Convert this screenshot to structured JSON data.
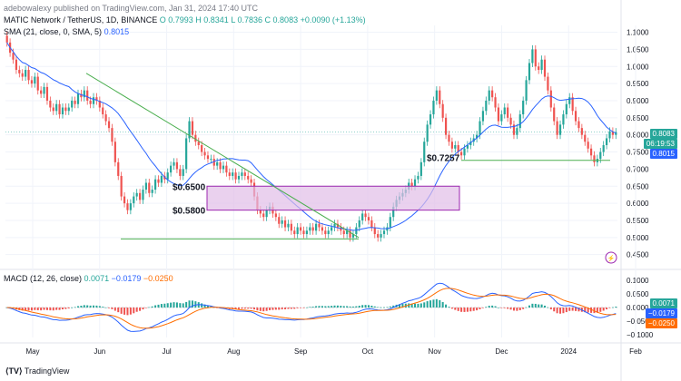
{
  "publisher_line": "adebowalexy published on TradingView.com, Jan 31, 2024 17:40 UTC",
  "symbol_line": {
    "title": "MATIC Network / TetherUS, 1D, BINANCE",
    "o": "O 0.7993",
    "h": "H 0.8341",
    "l": "L 0.7836",
    "c": "C 0.8083",
    "chg": "+0.0090 (+1.13%)"
  },
  "sma_line": {
    "label": "SMA (21, close, 0, SMA, 5)",
    "value": "0.8015"
  },
  "macd_line": {
    "label": "MACD (12, 26, close)",
    "v1": "0.0071",
    "v2": "−0.0179",
    "v3": "−0.0250"
  },
  "price_tags": {
    "last": "0.8083",
    "countdown": "06:19:53",
    "sma": "0.8015"
  },
  "macd_tags": {
    "hist": "0.0071",
    "macd": "−0.0179",
    "signal": "−0.0250"
  },
  "annotations": {
    "a1": "$0.6500",
    "a2": "$0.5800",
    "a3": "$0.7257"
  },
  "watermark": "TradingView",
  "colors": {
    "up": "#26a69a",
    "down": "#ef5350",
    "sma": "#2962ff",
    "signal": "#ff6d00",
    "trend": "#4caf50",
    "box_fill": "#e1bee7",
    "box_stroke": "#9c27b0"
  },
  "price_axis": [
    "1.1000",
    "1.0500",
    "1.0000",
    "0.9500",
    "0.9000",
    "0.8500",
    "0.8000",
    "0.7500",
    "0.7000",
    "0.6500",
    "0.6000",
    "0.5500",
    "0.5000",
    "0.4500"
  ],
  "macd_axis": [
    "0.1000",
    "0.0500",
    "0.0000",
    "−0.0500",
    "−0.1000"
  ],
  "time_axis": [
    "May",
    "Jun",
    "Jul",
    "Aug",
    "Sep",
    "Oct",
    "Nov",
    "Dec",
    "2024",
    "Feb"
  ],
  "chart_data": {
    "type": "candlestick",
    "interval": "1D",
    "price_range": [
      0.42,
      1.12
    ],
    "candles_close": [
      1.07,
      1.04,
      1.02,
      0.99,
      0.98,
      0.97,
      0.99,
      0.96,
      0.95,
      0.97,
      0.93,
      0.92,
      0.94,
      0.9,
      0.88,
      0.87,
      0.89,
      0.86,
      0.88,
      0.87,
      0.88,
      0.9,
      0.89,
      0.92,
      0.91,
      0.93,
      0.9,
      0.89,
      0.91,
      0.9,
      0.88,
      0.86,
      0.84,
      0.82,
      0.78,
      0.72,
      0.68,
      0.62,
      0.6,
      0.58,
      0.6,
      0.62,
      0.63,
      0.61,
      0.64,
      0.66,
      0.63,
      0.64,
      0.67,
      0.66,
      0.68,
      0.67,
      0.69,
      0.71,
      0.72,
      0.7,
      0.68,
      0.7,
      0.79,
      0.84,
      0.8,
      0.78,
      0.77,
      0.75,
      0.74,
      0.73,
      0.73,
      0.71,
      0.72,
      0.7,
      0.71,
      0.69,
      0.68,
      0.69,
      0.67,
      0.68,
      0.69,
      0.68,
      0.67,
      0.66,
      0.62,
      0.58,
      0.57,
      0.56,
      0.58,
      0.59,
      0.57,
      0.56,
      0.54,
      0.55,
      0.53,
      0.54,
      0.52,
      0.51,
      0.53,
      0.52,
      0.51,
      0.52,
      0.53,
      0.52,
      0.54,
      0.53,
      0.52,
      0.51,
      0.52,
      0.53,
      0.54,
      0.53,
      0.52,
      0.51,
      0.52,
      0.5,
      0.51,
      0.53,
      0.55,
      0.57,
      0.56,
      0.55,
      0.53,
      0.51,
      0.5,
      0.51,
      0.52,
      0.53,
      0.56,
      0.59,
      0.61,
      0.62,
      0.63,
      0.64,
      0.66,
      0.65,
      0.67,
      0.68,
      0.72,
      0.78,
      0.83,
      0.86,
      0.9,
      0.93,
      0.89,
      0.85,
      0.8,
      0.78,
      0.76,
      0.77,
      0.75,
      0.74,
      0.76,
      0.77,
      0.78,
      0.79,
      0.8,
      0.84,
      0.87,
      0.9,
      0.93,
      0.91,
      0.88,
      0.84,
      0.86,
      0.88,
      0.85,
      0.83,
      0.8,
      0.82,
      0.86,
      0.9,
      0.96,
      1.01,
      1.05,
      1.0,
      0.99,
      1.02,
      0.97,
      0.93,
      0.88,
      0.84,
      0.8,
      0.83,
      0.86,
      0.89,
      0.91,
      0.87,
      0.84,
      0.82,
      0.8,
      0.78,
      0.76,
      0.74,
      0.72,
      0.73,
      0.75,
      0.77,
      0.79,
      0.81,
      0.8,
      0.808
    ],
    "sma": {
      "period": 21,
      "last": 0.8015
    },
    "levels": [
      0.65,
      0.58,
      0.7257
    ],
    "macd": {
      "fast": 12,
      "slow": 26,
      "hist": 0.0071,
      "macd": -0.0179,
      "signal": -0.025
    }
  }
}
